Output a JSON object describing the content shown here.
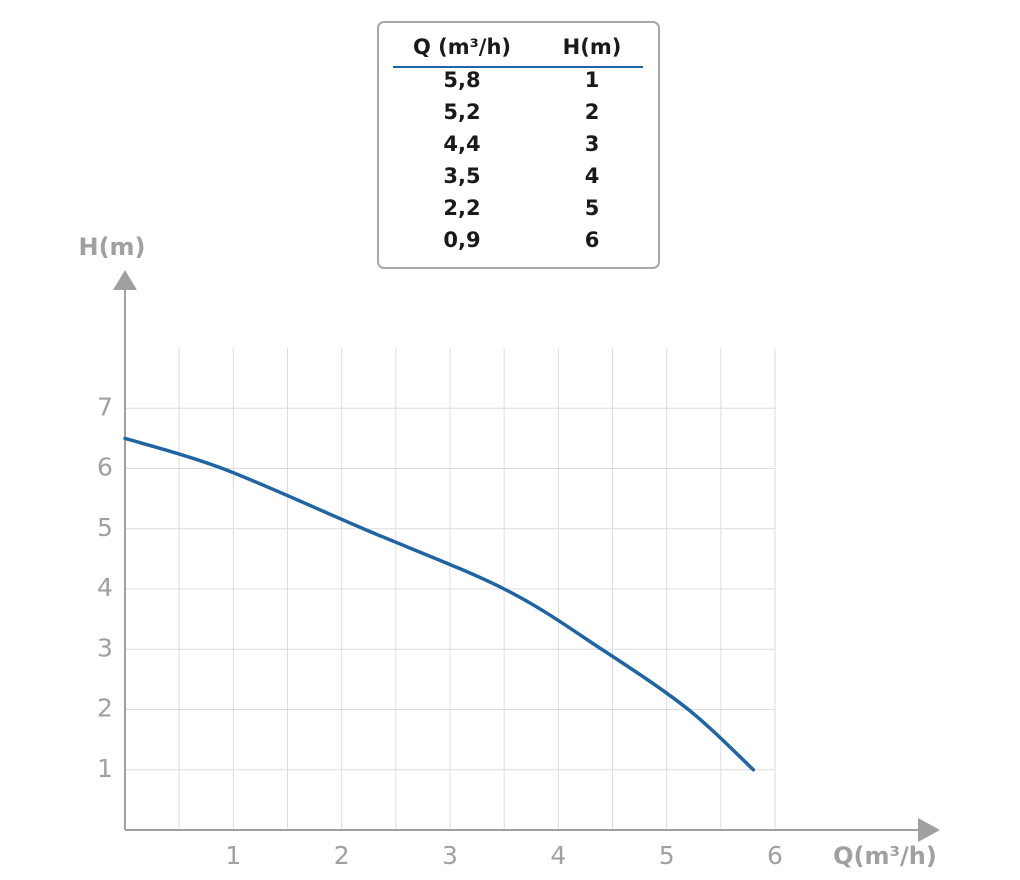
{
  "chart_data": {
    "type": "line",
    "x_label": "Q(m³/h)",
    "y_label": "H(m)",
    "x": [
      0,
      0.9,
      2.2,
      3.5,
      4.4,
      5.2,
      5.8
    ],
    "series": [
      {
        "color": "#1f64a3",
        "values": [
          6.5,
          6,
          5,
          4,
          3,
          2,
          1
        ]
      }
    ],
    "xlim": [
      0,
      6
    ],
    "ylim": [
      0,
      8
    ],
    "xticks": [
      1,
      2,
      3,
      4,
      5,
      6
    ],
    "yticks": [
      1,
      2,
      3,
      4,
      5,
      6,
      7
    ],
    "xgrid": [
      0.5,
      1,
      1.5,
      2,
      2.5,
      3,
      3.5,
      4,
      4.5,
      5,
      5.5,
      6
    ],
    "ygrid": [
      1,
      2,
      3,
      4,
      5,
      6,
      7
    ],
    "grid": true
  },
  "table": {
    "columns": [
      "Q (m³/h)",
      "H(m)"
    ],
    "rows": [
      [
        "5,8",
        "1"
      ],
      [
        "5,2",
        "2"
      ],
      [
        "4,4",
        "3"
      ],
      [
        "3,5",
        "4"
      ],
      [
        "2,2",
        "5"
      ],
      [
        "0,9",
        "6"
      ]
    ]
  }
}
